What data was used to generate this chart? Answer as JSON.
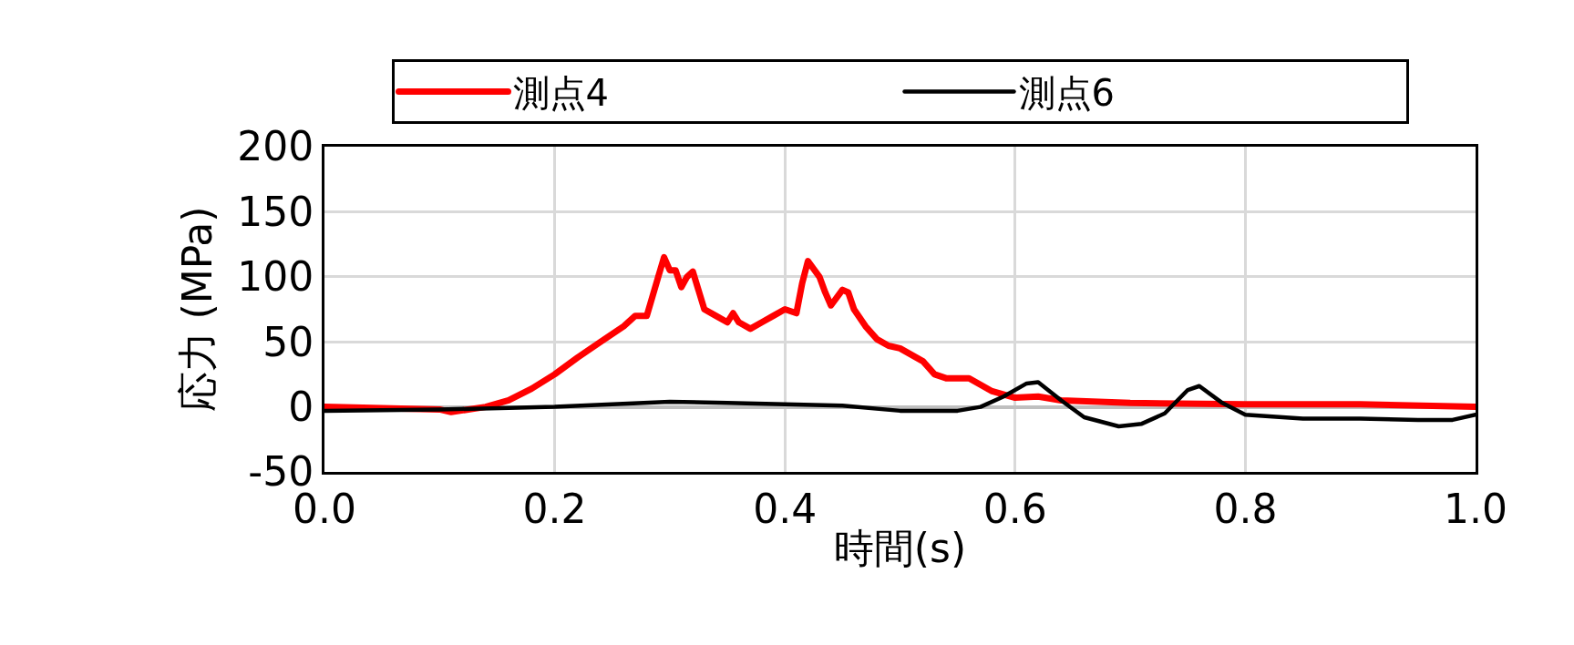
{
  "chart_data": {
    "type": "line",
    "xlabel": "時間(s)",
    "ylabel": "応力 (MPa)",
    "xlim": [
      0,
      1
    ],
    "xticks": [
      {
        "value": 0,
        "label": "0.0"
      },
      {
        "value": 0.2,
        "label": "0.2"
      },
      {
        "value": 0.4,
        "label": "0.4"
      },
      {
        "value": 0.6,
        "label": "0.6"
      },
      {
        "value": 0.8,
        "label": "0.8"
      },
      {
        "value": 1,
        "label": "1.0"
      }
    ],
    "ylim": [
      -50,
      200
    ],
    "yticks": [
      -50,
      0,
      50,
      100,
      150,
      200
    ],
    "grid": true,
    "legend": "top",
    "marker": "none",
    "line_style": "solid",
    "series": [
      {
        "name": "測点4",
        "color": "#ff0000",
        "x": [
          0,
          0.05,
          0.1,
          0.11,
          0.14,
          0.16,
          0.18,
          0.2,
          0.22,
          0.24,
          0.26,
          0.27,
          0.28,
          0.29,
          0.295,
          0.3,
          0.305,
          0.31,
          0.315,
          0.32,
          0.33,
          0.34,
          0.35,
          0.355,
          0.36,
          0.37,
          0.38,
          0.39,
          0.4,
          0.41,
          0.415,
          0.42,
          0.43,
          0.435,
          0.44,
          0.45,
          0.455,
          0.46,
          0.47,
          0.48,
          0.49,
          0.5,
          0.52,
          0.53,
          0.54,
          0.56,
          0.58,
          0.6,
          0.62,
          0.64,
          0.7,
          0.8,
          0.9,
          1
        ],
        "values": [
          0,
          -1,
          -2,
          -4,
          0,
          5,
          14,
          25,
          38,
          50,
          62,
          70,
          70,
          100,
          115,
          105,
          105,
          92,
          100,
          104,
          75,
          70,
          65,
          72,
          65,
          60,
          65,
          70,
          75,
          72,
          95,
          112,
          100,
          88,
          78,
          90,
          88,
          75,
          62,
          52,
          47,
          45,
          35,
          25,
          22,
          22,
          12,
          7,
          8,
          5,
          3,
          2,
          2,
          0
        ]
      },
      {
        "name": "測点6",
        "color": "#000000",
        "x": [
          0,
          0.1,
          0.2,
          0.25,
          0.3,
          0.35,
          0.4,
          0.45,
          0.5,
          0.55,
          0.57,
          0.59,
          0.61,
          0.62,
          0.64,
          0.66,
          0.69,
          0.71,
          0.73,
          0.75,
          0.76,
          0.78,
          0.8,
          0.85,
          0.9,
          0.95,
          0.98,
          1
        ],
        "values": [
          -3,
          -2,
          0,
          2,
          4,
          3,
          2,
          1,
          -3,
          -3,
          0,
          8,
          18,
          19,
          5,
          -8,
          -15,
          -13,
          -5,
          13,
          16,
          3,
          -6,
          -9,
          -9,
          -10,
          -10,
          -6
        ]
      }
    ]
  }
}
